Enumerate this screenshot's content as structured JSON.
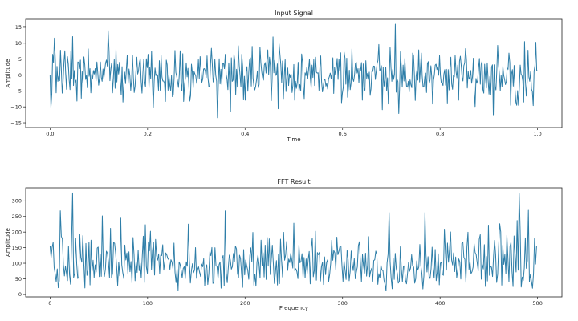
{
  "chart_data": [
    {
      "type": "line",
      "title": "Input Signal",
      "xlabel": "Time",
      "ylabel": "Amplitude",
      "xlim": [
        -0.05,
        1.05
      ],
      "ylim": [
        -16.5,
        17.5
      ],
      "xticks": [
        0.0,
        0.2,
        0.4,
        0.6,
        0.8,
        1.0
      ],
      "xtick_labels": [
        "0.0",
        "0.2",
        "0.4",
        "0.6",
        "0.8",
        "1.0"
      ],
      "yticks": [
        -15,
        -10,
        -5,
        0,
        5,
        10,
        15
      ],
      "ytick_labels": [
        "−15",
        "−10",
        "−5",
        "0",
        "5",
        "10",
        "15"
      ],
      "grid": false,
      "color": "#2e7ea8",
      "x_range": [
        0.0,
        1.0
      ],
      "values": [
        0.0,
        -10.1,
        -6.0,
        6.5,
        3.8,
        11.6,
        5.1,
        -5.6,
        2.7,
        -2.0,
        -0.4,
        -1.8,
        7.8,
        1.6,
        -5.7,
        -2.2,
        4.0,
        7.6,
        0.4,
        -4.5,
        5.8,
        3.5,
        -1.6,
        -4.6,
        7.4,
        -1.2,
        12.1,
        -3.3,
        1.4,
        -2.3,
        -1.6,
        -8.2,
        4.1,
        3.9,
        2.0,
        4.7,
        -7.3,
        1.1,
        -2.6,
        5.7,
        3.3,
        -1.4,
        -0.1,
        -4.0,
        8.2,
        -0.4,
        2.0,
        -5.6,
        0.2,
        -1.3,
        1.4,
        0.3,
        2.0,
        -1.9,
        4.1,
        0.7,
        -3.2,
        -1.0,
        4.1,
        -0.7,
        -2.0,
        1.9,
        -1.2,
        1.5,
        3.8,
        4.7,
        2.8,
        13.7,
        7.5,
        -1.8,
        1.9,
        3.8,
        -5.6,
        -1.0,
        5.0,
        -4.2,
        8.1,
        -2.2,
        3.3,
        0.3,
        4.0,
        -1.9,
        -6.3,
        2.6,
        -8.5,
        -3.2,
        0.9,
        -2.7,
        2.0,
        6.3,
        -2.7,
        1.9,
        -0.2,
        -4.8,
        -1.6,
        6.3,
        -0.6,
        -5.5,
        -3.6,
        1.2,
        5.6,
        0.3,
        1.3,
        3.9,
        5.1,
        -1.9,
        -5.7,
        0.5,
        4.9,
        -2.0,
        -3.6,
        5.1,
        2.3,
        6.5,
        -4.1,
        2.4,
        -1.2,
        7.5,
        -2.5,
        -10.1,
        -2.1,
        2.2,
        -0.2,
        0.3,
        -0.1,
        -4.8,
        4.5,
        -4.8,
        6.2,
        -0.6,
        -1.9,
        -1.9,
        -2.8,
        -8.3,
        4.7,
        3.2,
        -4.8,
        -0.1,
        -3.1,
        -4.8,
        -0.1,
        -6.8,
        -6.3,
        -1.1,
        7.7,
        0.8,
        -0.4,
        -2.0,
        -3.9,
        0.1,
        7.6,
        -2.7,
        -5.0,
        6.7,
        -8.3,
        -3.1,
        -1.0,
        3.8,
        -0.6,
        2.1,
        -3.5,
        -8.2,
        -6.5,
        3.4,
        0.8,
        -4.0,
        1.1,
        0.3,
        -0.3,
        -2.6,
        -0.5,
        4.8,
        -1.1,
        5.8,
        1.6,
        -2.3,
        -1.3,
        1.9,
        2.0,
        1.2,
        -0.8,
        6.0,
        -0.7,
        -3.6,
        -3.4,
        3.4,
        8.4,
        3.5,
        -2.2,
        -0.6,
        4.9,
        -0.1,
        -1.9,
        -13.4,
        -2.7,
        5.1,
        -2.8,
        1.8,
        -3.0,
        3.6,
        3.7,
        2.0,
        6.5,
        0.1,
        -1.3,
        -4.6,
        3.8,
        -2.0,
        -11.6,
        5.4,
        -2.0,
        -1.6,
        6.5,
        4.4,
        -6.2,
        1.8,
        -3.8,
        9.2,
        3.2,
        -0.1,
        -3.7,
        6.5,
        2.8,
        -7.6,
        -0.4,
        -7.9,
        1.0,
        2.6,
        -5.1,
        0.6,
        4.7,
        5.4,
        -3.5,
        9.0,
        -1.0,
        -3.5,
        -4.7,
        -3.6,
        -1.5,
        1.3,
        -4.1,
        -3.0,
        8.8,
        3.9,
        1.0,
        -0.8,
        -1.6,
        3.1,
        3.9,
        0.6,
        4.6,
        7.9,
        0.0,
        5.6,
        2.9,
        -8.1,
        -1.3,
        12.0,
        0.7,
        4.6,
        -0.1,
        0.0,
        3.5,
        -10.6,
        9.8,
        6.5,
        3.2,
        -2.4,
        4.4,
        -7.4,
        -0.3,
        4.8,
        -5.2,
        -1.0,
        2.2,
        -3.3,
        0.3,
        -0.8,
        0.2,
        -5.5,
        -3.1,
        3.3,
        -7.9,
        -2.0,
        -4.2,
        -2.3,
        4.0,
        -5.2,
        -3.0,
        -4.9,
        6.6,
        4.1,
        -3.9,
        -7.4,
        0.7,
        -0.2,
        2.5,
        -1.2,
        1.8,
        4.9,
        -0.8,
        -4.0,
        3.1,
        -0.8,
        4.8,
        -3.3,
        5.6,
        0.9,
        0.6,
        0.7,
        -4.8,
        2.2,
        6.0,
        -2.1,
        -5.3,
        -3.5,
        -1.5,
        -1.5,
        -3.5,
        -2.6,
        -4.4,
        -1.3,
        -0.5,
        0.6,
        -1.1,
        0.4,
        5.4,
        -5.8,
        2.4,
        0.1,
        2.2,
        5.2,
        -1.4,
        5.0,
        1.3,
        7.0,
        -8.7,
        -5.7,
        -3.9,
        7.2,
        5.3,
        -2.9,
        5.3,
        -7.0,
        -3.9,
        1.5,
        -4.6,
        -2.6,
        8.2,
        -1.2,
        -2.0,
        0.0,
        3.6,
        4.0,
        0.6,
        2.0,
        -2.4,
        2.0,
        1.4,
        3.9,
        -7.9,
        3.5,
        -4.2,
        -4.8,
        4.5,
        -1.1,
        0.5,
        -1.4,
        0.9,
        -6.4,
        -4.3,
        1.2,
        1.1,
        2.8,
        2.7,
        -1.4,
        1.1,
        3.6,
        4.6,
        9.6,
        1.3,
        1.9,
        2.9,
        -10.9,
        2.5,
        -3.5,
        -1.6,
        2.5,
        -5.0,
        -0.9,
        -9.1,
        -1.6,
        8.6,
        2.4,
        -2.0,
        1.7,
        -1.4,
        0.1,
        16.0,
        -5.4,
        -1.3,
        -2.1,
        -12.1,
        -3.6,
        7.3,
        2.2,
        -3.8,
        3.1,
        -1.9,
        5.2,
        -0.5,
        -3.6,
        -3.8,
        -2.0,
        -5.3,
        -1.5,
        -3.1,
        -4.0,
        6.9,
        6.1,
        0.1,
        -8.0,
        -0.4,
        1.6,
        -1.6,
        7.9,
        -2.2,
        2.2,
        6.9,
        -0.3,
        -3.8,
        -3.6,
        -0.6,
        0.6,
        -5.5,
        3.5,
        4.2,
        -2.7,
        -1.6,
        2.9,
        -0.5,
        -9.1,
        -1.7,
        0.0,
        3.1,
        3.4,
        1.7,
        2.5,
        -0.1,
        6.1,
        -0.1,
        -2.5,
        -2.6,
        -3.3,
        0.3,
        1.7,
        -3.2,
        1.8,
        -8.8,
        1.7,
        -4.7,
        2.2,
        5.6,
        -2.8,
        -4.5,
        -0.1,
        -0.6,
        6.1,
        1.1,
        -0.9,
        3.1,
        -7.9,
        4.3,
        5.9,
        2.9,
        -0.8,
        -1.9,
        2.9,
        3.8,
        8.3,
        4.9,
        -4.1,
        1.2,
        -1.3,
        -0.7,
        1.4,
        -2.6,
        -0.5,
        5.3,
        -5.2,
        -9.9,
        -1.1,
        -2.6,
        -1.5,
        2.3,
        5.2,
        -2.9,
        3.3,
        4.3,
        -4.6,
        -5.7,
        3.4,
        -1.1,
        -4.1,
        3.8,
        -1.6,
        -6.0,
        -0.5,
        -6.2,
        2.5,
        3.2,
        -12.5,
        3.2,
        -3.6,
        -4.7,
        1.4,
        9.3,
        3.3,
        0.3,
        -4.9,
        -0.1,
        -3.7,
        2.7,
        -0.2,
        -1.4,
        -3.0,
        -2.0,
        2.2,
        1.8,
        6.9,
        3.9,
        -9.5,
        0.3,
        1.7,
        -3.5,
        3.0,
        -4.6,
        -8.5,
        -9.5,
        -4.9,
        -9.5,
        -4.0,
        3.1,
        0.3,
        -0.2,
        -1.9,
        -8.5,
        10.5,
        -1.9,
        -6.6,
        -2.3,
        7.8,
        -0.6,
        -2.0,
        1.0,
        -4.4,
        -5.2,
        -9.6,
        1.3,
        2.9,
        10.3,
        1.5,
        1.2
      ]
    },
    {
      "type": "line",
      "title": "FFT Result",
      "xlabel": "Frequency",
      "ylabel": "Amplitude",
      "xlim": [
        -25,
        525
      ],
      "ylim": [
        -8,
        342
      ],
      "xticks": [
        0,
        100,
        200,
        300,
        400,
        500
      ],
      "xtick_labels": [
        "0",
        "100",
        "200",
        "300",
        "400",
        "500"
      ],
      "yticks": [
        0,
        50,
        100,
        150,
        200,
        250,
        300
      ],
      "ytick_labels": [
        "0",
        "50",
        "100",
        "150",
        "200",
        "250",
        "300"
      ],
      "grid": false,
      "color": "#2e7ea8",
      "x_range": [
        0,
        499
      ],
      "values": [
        156.4,
        118.0,
        150.8,
        166.7,
        85.8,
        65.8,
        40.8,
        81.7,
        21.2,
        44.1,
        268.2,
        186.0,
        177.6,
        95.4,
        59.1,
        91.3,
        67.5,
        44.1,
        155.0,
        62.0,
        32.5,
        169.2,
        325.6,
        54.0,
        67.5,
        179.5,
        98.3,
        51.0,
        54.9,
        193.3,
        117.7,
        103.4,
        188.7,
        95.5,
        20.6,
        163.6,
        60.8,
        78.1,
        167.0,
        30.4,
        174.1,
        74.5,
        109.7,
        54.3,
        94.9,
        71.9,
        148.7,
        151.9,
        56.9,
        128.1,
        57.8,
        251.8,
        91.0,
        57.2,
        80.0,
        138.8,
        132.1,
        104.0,
        54.4,
        212.1,
        53.9,
        66.9,
        166.3,
        164.3,
        132.9,
        89.0,
        28.4,
        102.2,
        59.4,
        244.8,
        94.7,
        69.1,
        50.6,
        158.3,
        110.4,
        132.9,
        66.5,
        136.6,
        72.7,
        105.6,
        36.3,
        182.6,
        126.6,
        43.7,
        106.5,
        70.2,
        141.5,
        76.0,
        99.8,
        53.3,
        121.8,
        186.6,
        38.2,
        223.5,
        88.5,
        67.4,
        168.5,
        139.6,
        202.8,
        80.2,
        140.9,
        168.2,
        62.0,
        176.6,
        124.1,
        109.8,
        129.9,
        67.0,
        125.9,
        124.3,
        159.2,
        77.9,
        104.1,
        133.1,
        126.1,
        114.9,
        111.2,
        80.4,
        111.4,
        103.8,
        82.2,
        164.8,
        70.9,
        37.8,
        81.8,
        13.5,
        104.3,
        95.7,
        77.6,
        52.7,
        83.0,
        88.7,
        50.7,
        104.5,
        90.5,
        225.5,
        106.3,
        36.5,
        75.9,
        98.5,
        69.4,
        77.6,
        150.4,
        51.4,
        79.6,
        88.4,
        70.4,
        57.3,
        97.5,
        88.8,
        114.8,
        28.4,
        83.3,
        94.9,
        31.6,
        65.7,
        136.9,
        124.1,
        150.6,
        35.0,
        40.2,
        149.8,
        91.9,
        90.1,
        51.0,
        95.1,
        104.1,
        20.1,
        115.5,
        124.7,
        27.8,
        268.0,
        69.2,
        37.6,
        85.6,
        126.1,
        110.9,
        81.1,
        89.4,
        131.2,
        104.9,
        155.1,
        146.1,
        67.6,
        54.5,
        125.9,
        114.5,
        64.9,
        22.5,
        143.8,
        62.4,
        110.3,
        91.6,
        78.0,
        48.6,
        124.2,
        149.6,
        103.8,
        199.0,
        29.2,
        65.3,
        26.4,
        103.4,
        125.9,
        97.1,
        52.3,
        174.1,
        93.5,
        133.6,
        55.8,
        158.0,
        47.9,
        182.4,
        90.8,
        178.3,
        63.8,
        112.3,
        157.9,
        97.9,
        35.2,
        69.1,
        108.4,
        29.9,
        129.8,
        34.6,
        177.2,
        109.0,
        55.8,
        199.3,
        109.6,
        126.8,
        169.9,
        77.0,
        113.6,
        102.1,
        131.5,
        110.9,
        84.5,
        228.4,
        75.0,
        82.4,
        72.9,
        50.5,
        158.5,
        101.5,
        106.0,
        130.7,
        54.0,
        118.3,
        52.4,
        114.0,
        66.6,
        111.4,
        137.9,
        33.8,
        148.7,
        180.8,
        56.4,
        77.0,
        202.7,
        45.3,
        134.1,
        127.4,
        135.1,
        42.8,
        89.9,
        103.6,
        31.5,
        120.5,
        63.5,
        103.6,
        111.2,
        41.5,
        64.9,
        100.5,
        173.9,
        109.6,
        140.7,
        133.6,
        78.6,
        183.6,
        127.4,
        138.7,
        154.0,
        154.8,
        91.4,
        41.7,
        108.0,
        77.8,
        48.0,
        141.2,
        112.2,
        43.7,
        73.6,
        139.3,
        98.4,
        76.4,
        115.3,
        50.1,
        71.1,
        88.4,
        156.3,
        169.0,
        103.3,
        41.4,
        128.0,
        92.0,
        68.2,
        132.1,
        58.5,
        95.0,
        185.3,
        56.8,
        74.4,
        84.0,
        42.2,
        108.6,
        111.4,
        139.1,
        128.7,
        32.1,
        66.3,
        52.5,
        94.4,
        77.9,
        76.2,
        45.8,
        32.7,
        12.0,
        101.2,
        128.8,
        262.6,
        104.9,
        51.8,
        18.2,
        117.0,
        48.1,
        131.6,
        83.3,
        67.5,
        36.3,
        42.3,
        152.7,
        81.5,
        40.6,
        90.9,
        91.3,
        45.7,
        34.0,
        67.7,
        103.8,
        74.0,
        84.9,
        127.4,
        90.9,
        87.7,
        36.0,
        50.3,
        107.9,
        77.9,
        87.5,
        160.2,
        92.1,
        67.5,
        17.5,
        60.5,
        262.4,
        129.1,
        71.8,
        121.0,
        57.2,
        51.2,
        82.1,
        151.4,
        84.9,
        52.3,
        144.2,
        44.2,
        71.4,
        130.3,
        30.7,
        100.0,
        102.8,
        65.1,
        61.3,
        209.4,
        132.5,
        77.9,
        164.7,
        103.2,
        145.2,
        200.4,
        110.8,
        94.2,
        133.3,
        72.9,
        120.0,
        53.4,
        76.9,
        113.9,
        105.2,
        49.3,
        163.7,
        168.2,
        119.0,
        112.7,
        38.4,
        152.4,
        199.5,
        80.3,
        104.3,
        66.4,
        73.1,
        87.5,
        162.7,
        134.4,
        127.3,
        101.9,
        75.8,
        176.6,
        191.6,
        48.7,
        95.2,
        81.4,
        159.6,
        25.4,
        121.5,
        43.0,
        222.3,
        61.3,
        91.1,
        87.2,
        57.4,
        124.6,
        173.5,
        127.7,
        38.3,
        65.0,
        157.4,
        226.9,
        200.5,
        29.6,
        157.7,
        96.2,
        127.8,
        66.6,
        190.1,
        115.8,
        41.4,
        153.0,
        167.4,
        74.2,
        25.2,
        187.6,
        125.1,
        71.9,
        237.2,
        77.6,
        325.6,
        202.8,
        23.6,
        55.8,
        44.6,
        85.3,
        181.4,
        83.8,
        108.5,
        269.9,
        39.9,
        64.1,
        41.9,
        19.8,
        67.2,
        178.9,
        97.3,
        156.6
      ]
    }
  ]
}
